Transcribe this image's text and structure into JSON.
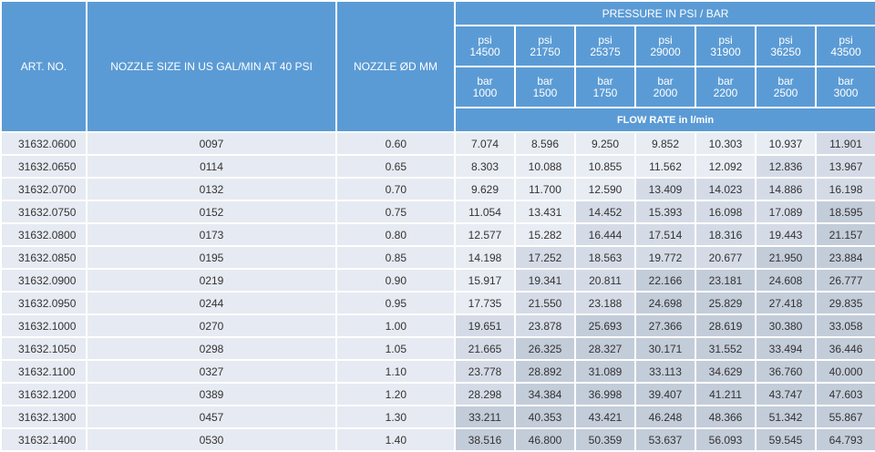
{
  "headers": {
    "art_no": "ART. NO.",
    "nozzle_size": "NOZZLE SIZE IN US GAL/MIN AT 40 PSI",
    "nozzle_dia": "NOZZLE ØD MM",
    "pressure": "PRESSURE IN PSI / BAR",
    "flow_rate": "FLOW RATE in l/min",
    "psi_label": "psi",
    "bar_label": "bar"
  },
  "psi_values": [
    "14500",
    "21750",
    "25375",
    "29000",
    "31900",
    "36250",
    "43500"
  ],
  "bar_values": [
    "1000",
    "1500",
    "1750",
    "2000",
    "2200",
    "2500",
    "3000"
  ],
  "rows": [
    {
      "art": "31632.0600",
      "size": "0097",
      "dia": "0.60",
      "flows": [
        "7.074",
        "8.596",
        "9.250",
        "9.852",
        "10.303",
        "10.937",
        "11.901"
      ]
    },
    {
      "art": "31632.0650",
      "size": "0114",
      "dia": "0.65",
      "flows": [
        "8.303",
        "10.088",
        "10.855",
        "11.562",
        "12.092",
        "12.836",
        "13.967"
      ]
    },
    {
      "art": "31632.0700",
      "size": "0132",
      "dia": "0.70",
      "flows": [
        "9.629",
        "11.700",
        "12.590",
        "13.409",
        "14.023",
        "14.886",
        "16.198"
      ]
    },
    {
      "art": "31632.0750",
      "size": "0152",
      "dia": "0.75",
      "flows": [
        "11.054",
        "13.431",
        "14.452",
        "15.393",
        "16.098",
        "17.089",
        "18.595"
      ]
    },
    {
      "art": "31632.0800",
      "size": "0173",
      "dia": "0.80",
      "flows": [
        "12.577",
        "15.282",
        "16.444",
        "17.514",
        "18.316",
        "19.443",
        "21.157"
      ]
    },
    {
      "art": "31632.0850",
      "size": "0195",
      "dia": "0.85",
      "flows": [
        "14.198",
        "17.252",
        "18.563",
        "19.772",
        "20.677",
        "21.950",
        "23.884"
      ]
    },
    {
      "art": "31632.0900",
      "size": "0219",
      "dia": "0.90",
      "flows": [
        "15.917",
        "19.341",
        "20.811",
        "22.166",
        "23.181",
        "24.608",
        "26.777"
      ]
    },
    {
      "art": "31632.0950",
      "size": "0244",
      "dia": "0.95",
      "flows": [
        "17.735",
        "21.550",
        "23.188",
        "24.698",
        "25.829",
        "27.418",
        "29.835"
      ]
    },
    {
      "art": "31632.1000",
      "size": "0270",
      "dia": "1.00",
      "flows": [
        "19.651",
        "23.878",
        "25.693",
        "27.366",
        "28.619",
        "30.380",
        "33.058"
      ]
    },
    {
      "art": "31632.1050",
      "size": "0298",
      "dia": "1.05",
      "flows": [
        "21.665",
        "26.325",
        "28.327",
        "30.171",
        "31.552",
        "33.494",
        "36.446"
      ]
    },
    {
      "art": "31632.1100",
      "size": "0327",
      "dia": "1.10",
      "flows": [
        "23.778",
        "28.892",
        "31.089",
        "33.113",
        "34.629",
        "36.760",
        "40.000"
      ]
    },
    {
      "art": "31632.1200",
      "size": "0389",
      "dia": "1.20",
      "flows": [
        "28.298",
        "34.384",
        "36.998",
        "39.407",
        "41.211",
        "43.747",
        "47.603"
      ]
    },
    {
      "art": "31632.1300",
      "size": "0457",
      "dia": "1.30",
      "flows": [
        "33.211",
        "40.353",
        "43.421",
        "46.248",
        "48.366",
        "51.342",
        "55.867"
      ]
    },
    {
      "art": "31632.1400",
      "size": "0530",
      "dia": "1.40",
      "flows": [
        "38.516",
        "46.800",
        "50.359",
        "53.637",
        "56.093",
        "59.545",
        "64.793"
      ]
    }
  ],
  "shading": [
    [
      0,
      0,
      0,
      0,
      0,
      0,
      1
    ],
    [
      0,
      0,
      0,
      0,
      0,
      1,
      1
    ],
    [
      0,
      0,
      0,
      1,
      1,
      1,
      1
    ],
    [
      0,
      0,
      1,
      1,
      1,
      1,
      2
    ],
    [
      0,
      0,
      1,
      1,
      1,
      1,
      2
    ],
    [
      0,
      1,
      1,
      1,
      1,
      2,
      2
    ],
    [
      0,
      1,
      1,
      2,
      2,
      2,
      2
    ],
    [
      0,
      1,
      1,
      2,
      2,
      2,
      2
    ],
    [
      1,
      1,
      2,
      2,
      2,
      2,
      2
    ],
    [
      1,
      2,
      2,
      2,
      2,
      2,
      2
    ],
    [
      1,
      2,
      2,
      2,
      2,
      2,
      2
    ],
    [
      1,
      2,
      2,
      2,
      2,
      2,
      2
    ],
    [
      2,
      2,
      2,
      2,
      2,
      2,
      2
    ],
    [
      2,
      2,
      2,
      2,
      2,
      2,
      2
    ]
  ]
}
